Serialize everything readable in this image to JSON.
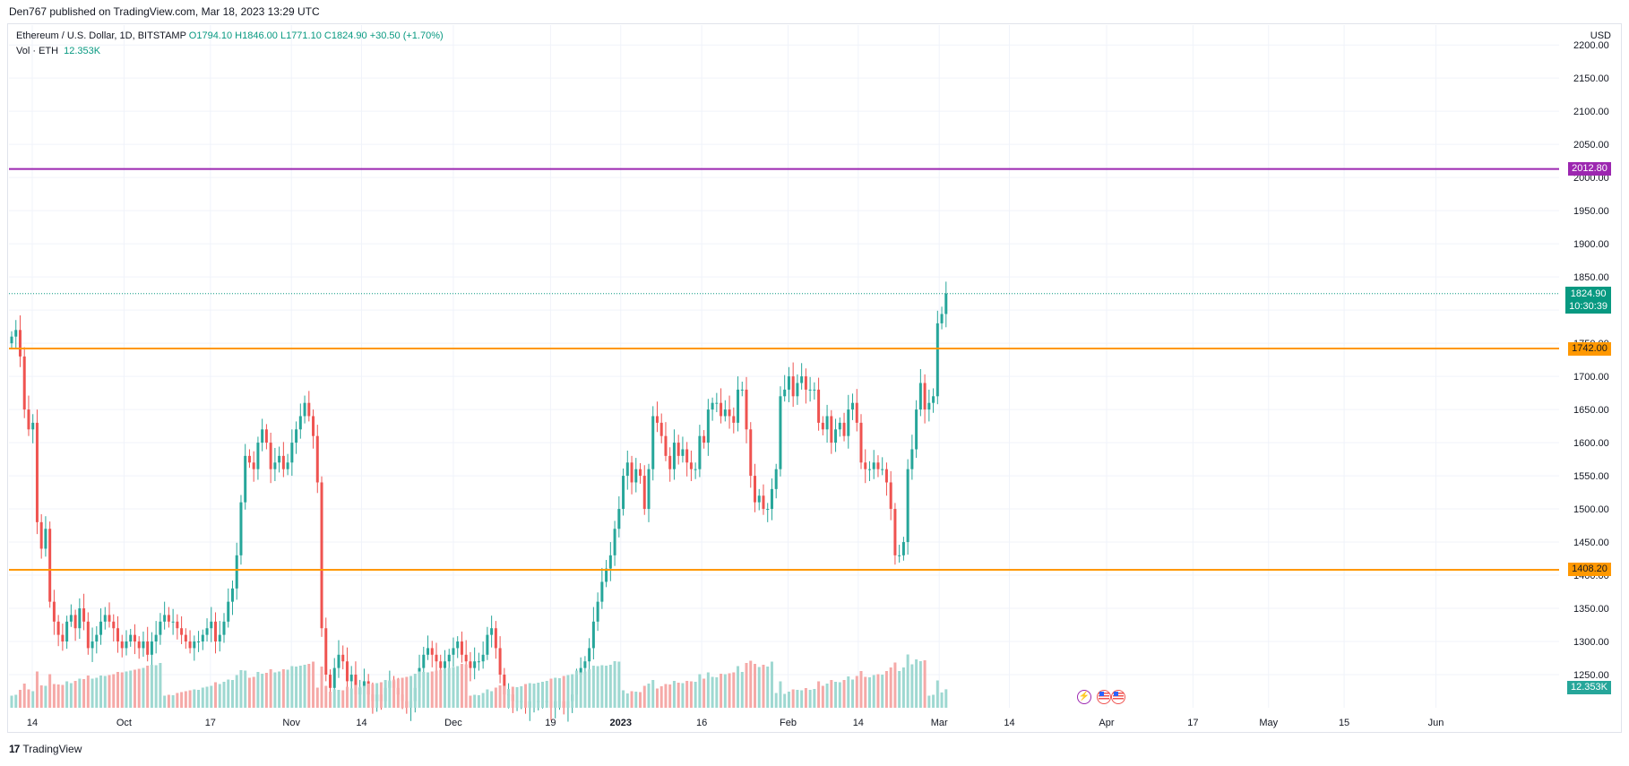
{
  "header": {
    "published": "Den767 published on TradingView.com, Mar 18, 2023 13:29 UTC"
  },
  "legend": {
    "symbol": "Ethereum / U.S. Dollar, 1D, BITSTAMP",
    "open": "O1794.10",
    "high": "H1846.00",
    "low": "L1771.10",
    "close": "C1824.90",
    "change": "+30.50 (+1.70%)",
    "volume_label": "Vol · ETH",
    "volume_value": "12.353K"
  },
  "price_axis": {
    "currency": "USD"
  },
  "tags": {
    "purple_line": "2012.80",
    "current_price": "1824.90",
    "countdown": "10:30:39",
    "resistance": "1742.00",
    "support": "1408.20",
    "volume": "12.353K"
  },
  "footer": {
    "brand": "TradingView"
  },
  "colors": {
    "up": "#26a69a",
    "down": "#ef5350",
    "up_volume": "#9ed8d1",
    "down_volume": "#f5a9a7",
    "purple_line": "#9c27b0",
    "orange_line": "#ff9800",
    "current_price": "#089981",
    "grid": "#f0f3fa"
  },
  "chart_data": {
    "type": "candlestick",
    "title": "Ethereum / U.S. Dollar, 1D, BITSTAMP",
    "y_axis": {
      "min": 1200,
      "max": 2230,
      "ticks": [
        1250,
        1300,
        1350,
        1400,
        1450,
        1500,
        1550,
        1600,
        1650,
        1700,
        1750,
        1800,
        1850,
        1900,
        1950,
        2000,
        2050,
        2100,
        2150,
        2200
      ],
      "tick_labels": [
        "1250.00",
        "1300.00",
        "1350.00",
        "1400.00",
        "1450.00",
        "1500.00",
        "1550.00",
        "1600.00",
        "1650.00",
        "1700.00",
        "1750.00",
        "1800.00",
        "1850.00",
        "1900.00",
        "1950.00",
        "2000.00",
        "2050.00",
        "2100.00",
        "2150.00",
        "2200.00"
      ]
    },
    "x_axis": {
      "ticks": [
        {
          "label": "14",
          "date": "2022-09-14"
        },
        {
          "label": "Oct",
          "date": "2022-10-01"
        },
        {
          "label": "17",
          "date": "2022-10-17"
        },
        {
          "label": "Nov",
          "date": "2022-11-01"
        },
        {
          "label": "14",
          "date": "2022-11-14"
        },
        {
          "label": "Dec",
          "date": "2022-12-01"
        },
        {
          "label": "19",
          "date": "2022-12-19"
        },
        {
          "label": "2023",
          "date": "2023-01-01"
        },
        {
          "label": "16",
          "date": "2023-01-16"
        },
        {
          "label": "Feb",
          "date": "2023-02-01"
        },
        {
          "label": "14",
          "date": "2023-02-14"
        },
        {
          "label": "Mar",
          "date": "2023-03-01"
        },
        {
          "label": "14",
          "date": "2023-03-14"
        },
        {
          "label": "Apr",
          "date": "2023-04-01"
        },
        {
          "label": "17",
          "date": "2023-04-17"
        },
        {
          "label": "May",
          "date": "2023-05-01"
        },
        {
          "label": "15",
          "date": "2023-05-15"
        },
        {
          "label": "Jun",
          "date": "2023-06-01"
        }
      ]
    },
    "horizontal_lines": [
      {
        "price": 2012.8,
        "color": "#9c27b0"
      },
      {
        "price": 1742.0,
        "color": "#ff9800"
      },
      {
        "price": 1408.2,
        "color": "#ff9800"
      }
    ],
    "last_price": 1824.9,
    "closes": [
      1760,
      1770,
      1730,
      1650,
      1620,
      1630,
      1480,
      1440,
      1470,
      1360,
      1330,
      1310,
      1300,
      1330,
      1340,
      1320,
      1350,
      1330,
      1290,
      1300,
      1310,
      1330,
      1340,
      1330,
      1320,
      1300,
      1290,
      1300,
      1310,
      1300,
      1290,
      1300,
      1280,
      1300,
      1310,
      1330,
      1340,
      1330,
      1330,
      1320,
      1310,
      1300,
      1290,
      1300,
      1300,
      1310,
      1320,
      1330,
      1300,
      1310,
      1330,
      1360,
      1380,
      1430,
      1510,
      1580,
      1570,
      1560,
      1600,
      1620,
      1600,
      1560,
      1570,
      1580,
      1560,
      1570,
      1600,
      1620,
      1640,
      1660,
      1640,
      1610,
      1540,
      1320,
      1250,
      1230,
      1260,
      1280,
      1270,
      1240,
      1250,
      1220,
      1230,
      1240,
      1220,
      1210,
      1220,
      1210,
      1230,
      1240,
      1230,
      1220,
      1210,
      1200,
      1210,
      1230,
      1260,
      1280,
      1290,
      1280,
      1270,
      1260,
      1270,
      1280,
      1290,
      1300,
      1280,
      1270,
      1260,
      1270,
      1270,
      1280,
      1310,
      1320,
      1290,
      1250,
      1220,
      1220,
      1210,
      1210,
      1210,
      1200,
      1210,
      1210,
      1210,
      1210,
      1210,
      1200,
      1210,
      1210,
      1200,
      1210,
      1220,
      1250,
      1260,
      1270,
      1290,
      1330,
      1360,
      1390,
      1410,
      1430,
      1470,
      1500,
      1550,
      1570,
      1540,
      1560,
      1550,
      1500,
      1560,
      1640,
      1630,
      1610,
      1580,
      1560,
      1600,
      1580,
      1590,
      1570,
      1560,
      1560,
      1610,
      1600,
      1650,
      1660,
      1660,
      1640,
      1650,
      1640,
      1630,
      1680,
      1680,
      1620,
      1550,
      1510,
      1520,
      1500,
      1500,
      1530,
      1560,
      1670,
      1680,
      1700,
      1670,
      1690,
      1700,
      1680,
      1680,
      1680,
      1630,
      1620,
      1640,
      1600,
      1620,
      1630,
      1610,
      1650,
      1660,
      1630,
      1570,
      1560,
      1560,
      1570,
      1560,
      1560,
      1540,
      1500,
      1430,
      1430,
      1450,
      1560,
      1590,
      1650,
      1690,
      1650,
      1660,
      1670,
      1780,
      1794.1,
      1824.9
    ],
    "volume_last": "12.353K"
  }
}
